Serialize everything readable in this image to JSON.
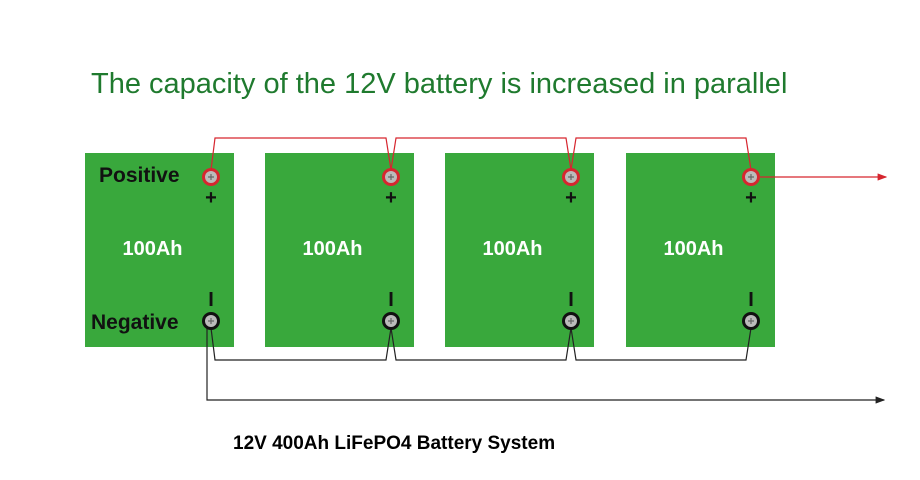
{
  "title": "The capacity of the 12V battery is increased in parallel",
  "labels": {
    "positive": "Positive",
    "negative": "Negative",
    "plus": "+",
    "minus": "I"
  },
  "batteries": [
    {
      "capacity": "100Ah"
    },
    {
      "capacity": "100Ah"
    },
    {
      "capacity": "100Ah"
    },
    {
      "capacity": "100Ah"
    }
  ],
  "caption": "12V 400Ah LiFePO4 Battery System",
  "colors": {
    "battery": "#39a83c",
    "positive_wire": "#d6262f",
    "negative_wire": "#222222",
    "title": "#1f7a2e"
  }
}
